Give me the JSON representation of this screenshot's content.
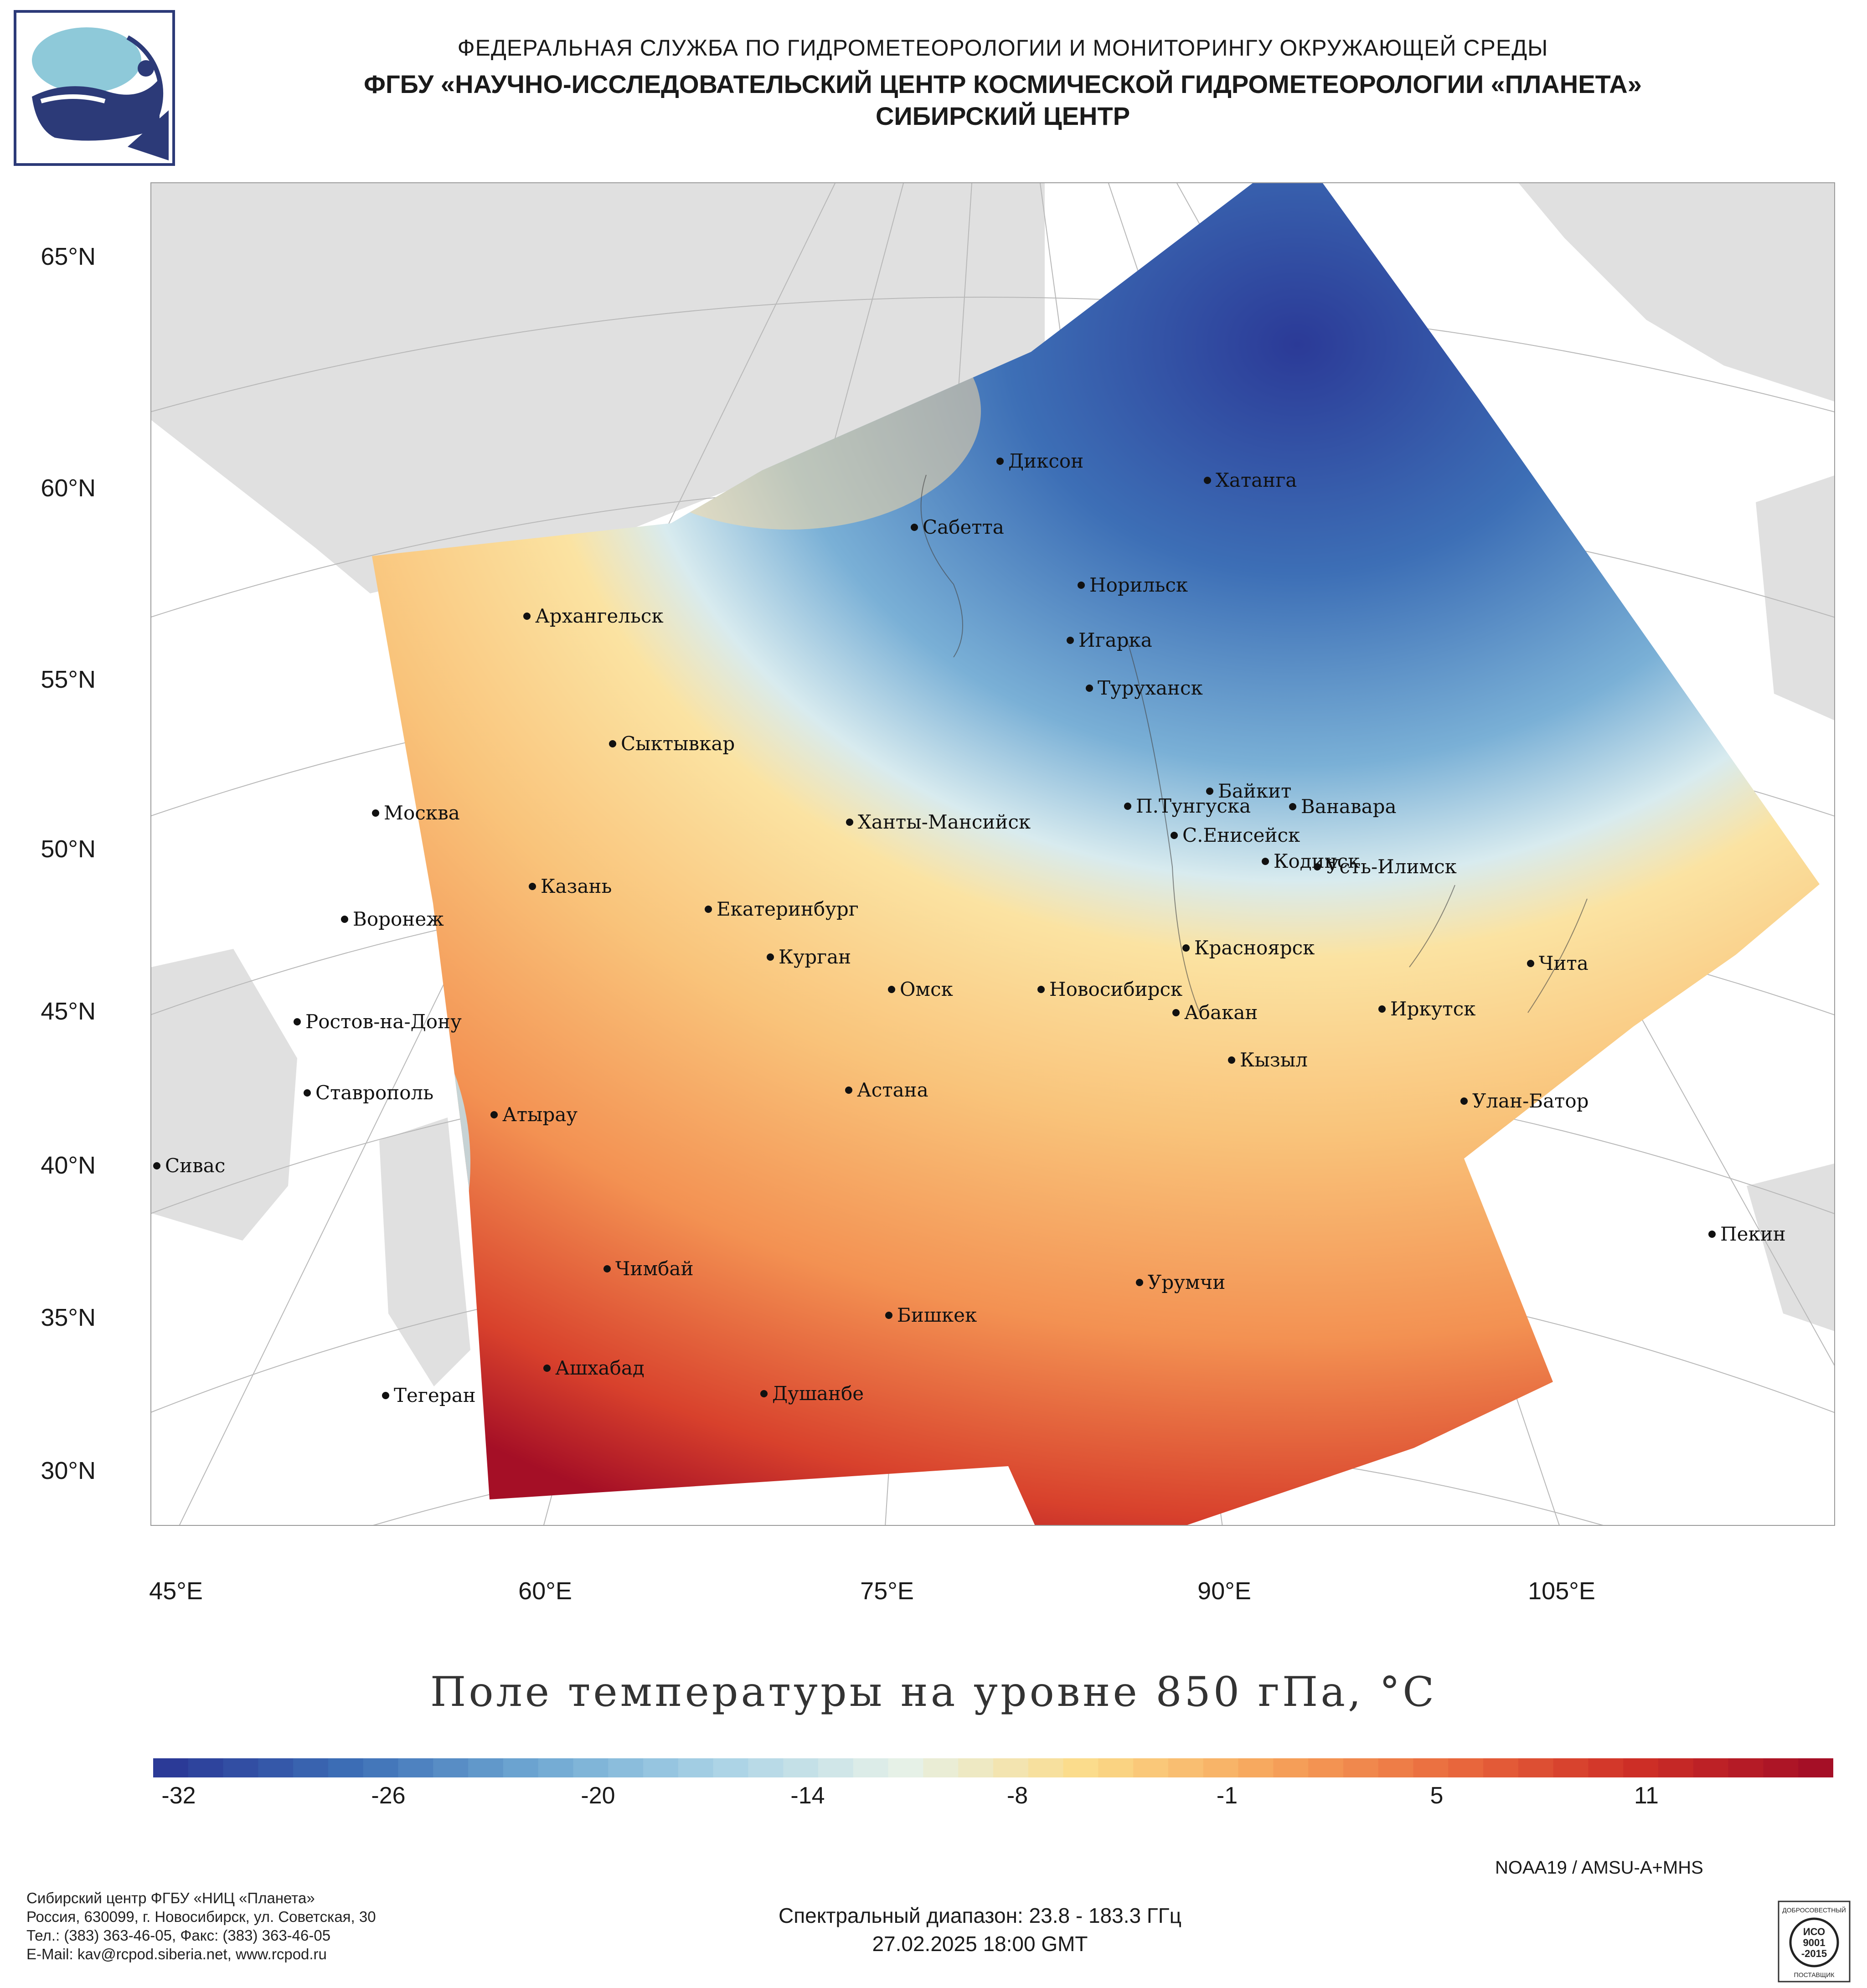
{
  "header": {
    "line1": "ФЕДЕРАЛЬНАЯ СЛУЖБА ПО ГИДРОМЕТЕОРОЛОГИИ И МОНИТОРИНГУ ОКРУЖАЮЩЕЙ СРЕДЫ",
    "line2": "ФГБУ «НАУЧНО-ИССЛЕДОВАТЕЛЬСКИЙ ЦЕНТР КОСМИЧЕСКОЙ ГИДРОМЕТЕОРОЛОГИИ «ПЛАНЕТА»",
    "line3": "СИБИРСКИЙ ЦЕНТР"
  },
  "map": {
    "title": "Поле температуры на уровне 850 гПа, °C",
    "lat_labels": [
      "65°N",
      "60°N",
      "55°N",
      "50°N",
      "45°N",
      "40°N",
      "35°N",
      "30°N"
    ],
    "lon_labels": [
      "45°E",
      "60°E",
      "75°E",
      "90°E",
      "105°E"
    ],
    "cities": [
      "Диксон",
      "Хатанга",
      "Сабетта",
      "Норильск",
      "Архангельск",
      "Игарка",
      "Туруханск",
      "Сыктывкар",
      "Байкит",
      "Москва",
      "Ханты-Мансийск",
      "П.Тунгуска",
      "Ванавара",
      "С.Енисейск",
      "Кодинск",
      "Усть-Илимск",
      "Казань",
      "Екатеринбург",
      "Воронеж",
      "Красноярск",
      "Курган",
      "Чита",
      "Омск",
      "Новосибирск",
      "Иркутск",
      "Абакан",
      "Ростов-на-Дону",
      "Кызыл",
      "Ставрополь",
      "Астана",
      "Улан-Батор",
      "Атырау",
      "Сивас",
      "Пекин",
      "Чимбай",
      "Урумчи",
      "Бишкек",
      "Ашхабад",
      "Тегеран",
      "Душанбе"
    ]
  },
  "colorbar": {
    "tick_labels": [
      "-32",
      "-26",
      "-20",
      "-14",
      "-8",
      "-1",
      "5",
      "11"
    ],
    "colors": [
      "#2b3a97",
      "#3d6fb6",
      "#6fa8d2",
      "#a9d2e6",
      "#e6f1e9",
      "#fbdc8a",
      "#f7a65c",
      "#ea6b3e",
      "#cf2f26",
      "#a50f26"
    ]
  },
  "footer": {
    "org_lines": [
      "Сибирский центр ФГБУ «НИЦ «Планета»",
      "Россия, 630099, г. Новосибирск, ул. Советская, 30",
      "Тел.: (383) 363-46-05, Факс: (383) 363-46-05",
      "E-Mail: kav@rcpod.siberia.net, www.rcpod.ru"
    ],
    "satellite": "NOAA19 / AMSU-A+MHS",
    "spectral": "Спектральный диапазон: 23.8 - 183.3 ГГц",
    "datetime": "27.02.2025 18:00 GMT",
    "iso": [
      "ДОБРОСОВЕСТНЫЙ",
      "ИСО",
      "9001",
      "-2015",
      "ПОСТАВЩИК"
    ]
  }
}
